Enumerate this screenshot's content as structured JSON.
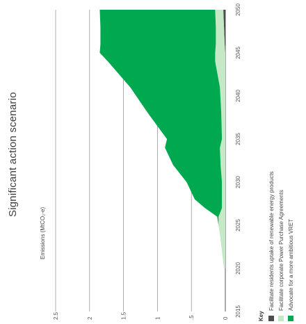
{
  "chart_data": {
    "type": "area",
    "title": "Significant action scenario",
    "ylabel": "Emissions (MtCO₂-e)",
    "x": [
      2020,
      2024,
      2025,
      2026,
      2027,
      2028,
      2030,
      2032,
      2034,
      2035,
      2038,
      2041,
      2044,
      2045,
      2046,
      2048,
      2050
    ],
    "ylim": [
      0,
      2.5
    ],
    "xlim": [
      2015,
      2050
    ],
    "yticks": [
      "0",
      ".5",
      "1",
      "1.5",
      "2",
      "2.5"
    ],
    "xticks": [
      "2015",
      "2020",
      "2025",
      "2030",
      "2035",
      "2040",
      "2045",
      "2050"
    ],
    "series": [
      {
        "name": "Facilitate residents uptake of renewable energy products",
        "color": "#4d4d4d",
        "values": [
          0,
          0,
          0,
          0,
          0,
          0,
          0,
          0,
          0,
          0,
          0,
          0,
          0,
          0,
          0.01,
          0.02,
          0.03
        ]
      },
      {
        "name": "Facilitate corporate Power Purchase Agreements",
        "color": "#c5e8c7",
        "values": [
          0.02,
          0.08,
          0.1,
          0.1,
          0.05,
          0.05,
          0.05,
          0.07,
          0.08,
          0.05,
          0.06,
          0.08,
          0.15,
          0.15,
          0.13,
          0.12,
          0.12
        ]
      },
      {
        "name": "Advocate for a more ambitious VRET",
        "color": "#00a94f",
        "values": [
          0,
          0,
          0,
          0.02,
          0.25,
          0.4,
          0.52,
          0.7,
          0.81,
          0.81,
          1.08,
          1.32,
          1.58,
          1.7,
          1.7,
          1.7,
          1.7
        ]
      }
    ],
    "gridlines": "horizontal",
    "legend_position": "bottom-left",
    "legend_title": "Key"
  }
}
